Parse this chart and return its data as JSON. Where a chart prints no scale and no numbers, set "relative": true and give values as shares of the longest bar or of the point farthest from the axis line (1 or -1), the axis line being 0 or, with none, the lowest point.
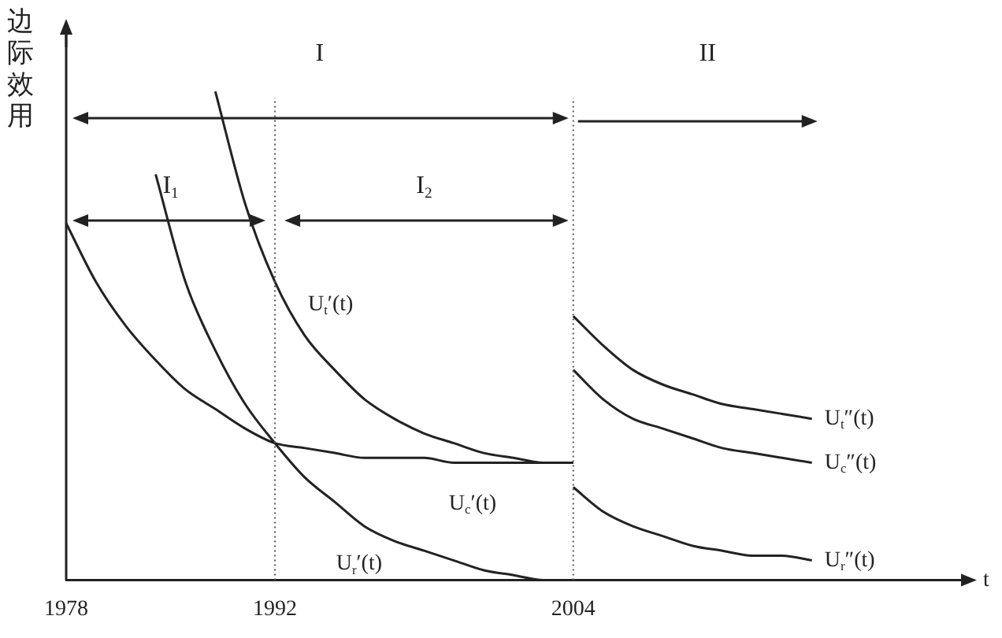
{
  "chart_data": {
    "type": "line",
    "relative": true,
    "ylabel": "边际效用",
    "xlabel": "t",
    "categories": [
      "1978",
      null,
      null,
      null,
      null,
      null,
      null,
      "1992",
      null,
      null,
      null,
      null,
      null,
      null,
      null,
      null,
      null,
      "2004",
      null,
      null,
      null,
      null,
      null,
      null,
      null,
      null,
      null,
      null,
      null,
      null,
      null
    ],
    "series": [
      {
        "name": "U$_{c}$′(t)",
        "color": "#222222",
        "values": [
          0.73,
          0.61,
          0.52,
          0.45,
          0.39,
          0.35,
          0.31,
          0.28,
          0.27,
          0.26,
          0.25,
          0.25,
          0.25,
          0.24,
          0.24,
          0.24,
          0.24,
          0.24,
          null,
          null,
          null,
          null,
          null,
          null,
          null,
          null,
          null,
          null,
          null,
          null,
          null
        ]
      },
      {
        "name": "U$_{r}$′(t)",
        "color": "#222222",
        "values": [
          null,
          null,
          null,
          0.83,
          0.61,
          0.47,
          0.36,
          0.28,
          0.21,
          0.16,
          0.11,
          0.08,
          0.06,
          0.04,
          0.02,
          0.01,
          0.0,
          0,
          null,
          null,
          null,
          null,
          null,
          null,
          null,
          null,
          null,
          null,
          null,
          null,
          null
        ]
      },
      {
        "name": "U$_{t}$′(t)",
        "color": "#222222",
        "values": [
          null,
          null,
          null,
          null,
          null,
          1.0,
          0.77,
          0.61,
          0.5,
          0.43,
          0.37,
          0.33,
          0.3,
          0.28,
          0.26,
          0.25,
          0.24,
          0.24,
          null,
          null,
          null,
          null,
          null,
          null,
          null,
          null,
          null,
          null,
          null,
          null,
          null
        ]
      },
      {
        "name": "U$_{t}$″(t)",
        "color": "#222222",
        "values": [
          null,
          null,
          null,
          null,
          null,
          null,
          null,
          null,
          null,
          null,
          null,
          null,
          null,
          null,
          null,
          null,
          null,
          0.54,
          0.48,
          0.43,
          0.4,
          0.38,
          0.36,
          0.35,
          0.34,
          0.33,
          null,
          null,
          null,
          null,
          null
        ]
      },
      {
        "name": "U$_{c}$″(t)",
        "color": "#222222",
        "values": [
          null,
          null,
          null,
          null,
          null,
          null,
          null,
          null,
          null,
          null,
          null,
          null,
          null,
          null,
          null,
          null,
          null,
          0.43,
          0.37,
          0.33,
          0.31,
          0.29,
          0.27,
          0.26,
          0.25,
          0.24,
          null,
          null,
          null,
          null,
          null
        ]
      },
      {
        "name": "U$_{r}$″(t)",
        "color": "#222222",
        "values": [
          null,
          null,
          null,
          null,
          null,
          null,
          null,
          null,
          null,
          null,
          null,
          null,
          null,
          null,
          null,
          null,
          null,
          0.19,
          0.14,
          0.11,
          0.09,
          0.07,
          0.06,
          0.05,
          0.05,
          0.04,
          null,
          null,
          null,
          null,
          null
        ]
      }
    ],
    "ref_lines": [
      {
        "axis": "x",
        "value": "1992",
        "line_style": "dotted",
        "color": "#555555"
      },
      {
        "axis": "x",
        "value": "2004",
        "line_style": "dotted",
        "color": "#555555"
      }
    ],
    "annotations": [
      "I",
      "II",
      "I$_{1}$",
      "I$_{2}$"
    ],
    "legend": false,
    "grid": false,
    "marker": "none",
    "line_style": "solid"
  }
}
